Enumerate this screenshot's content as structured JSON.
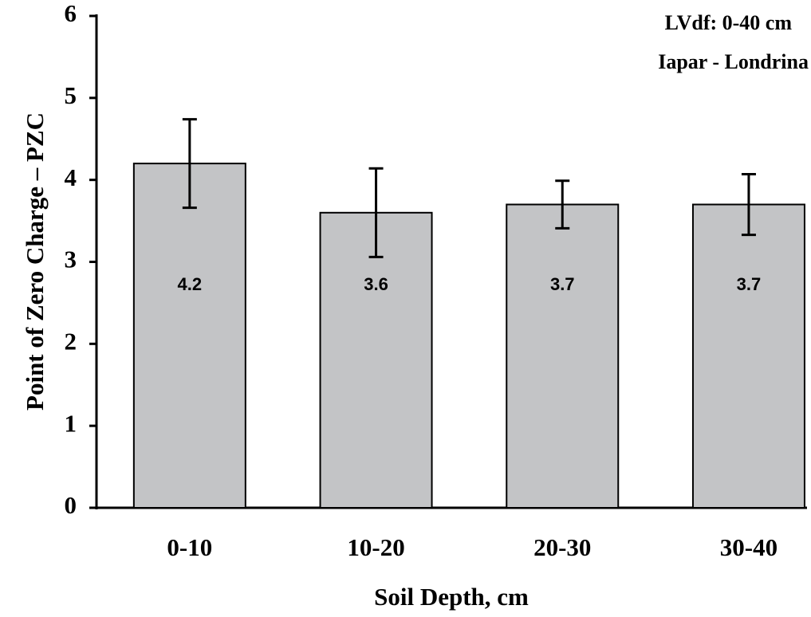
{
  "chart_data": {
    "type": "bar",
    "x_label": "Soil Depth, cm",
    "y_label": "Point of Zero Charge – PZC",
    "annotations": [
      "LVdf: 0-40 cm",
      "Iapar - Londrina"
    ],
    "categories": [
      "0-10",
      "10-20",
      "20-30",
      "30-40"
    ],
    "values": [
      4.2,
      3.6,
      3.7,
      3.7
    ],
    "errors": [
      0.54,
      0.54,
      0.29,
      0.37
    ],
    "color": "#c3c4c6",
    "ylim": [
      0,
      6
    ],
    "yticks": [
      0,
      1,
      2,
      3,
      4,
      5,
      6
    ]
  }
}
